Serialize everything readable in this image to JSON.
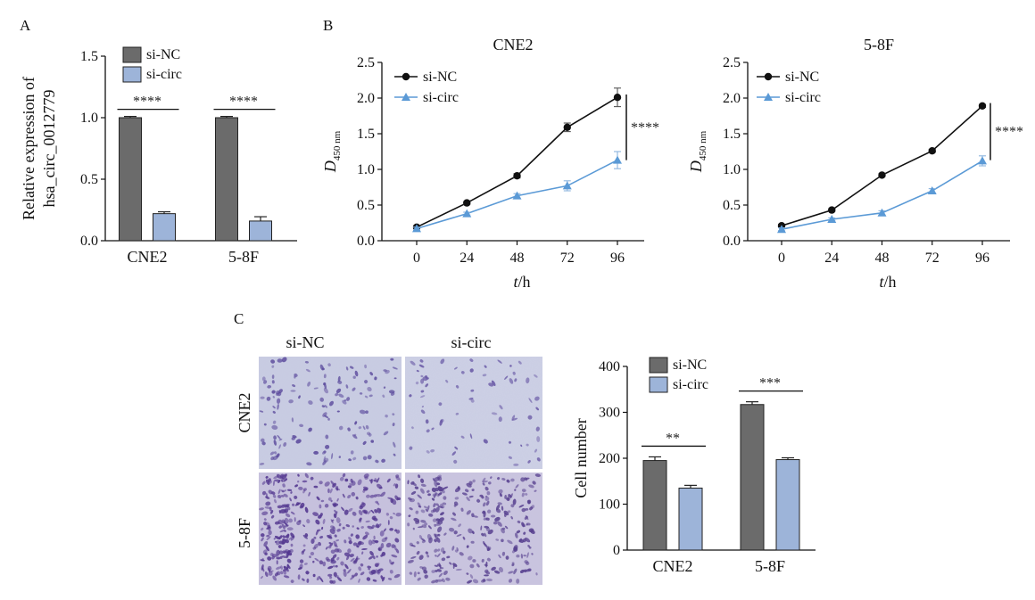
{
  "panel_labels": {
    "a": "A",
    "b": "B",
    "c": "C"
  },
  "colors": {
    "si_nc": "#6b6b6b",
    "si_circ": "#9db4d9",
    "line_nc": "#111111",
    "line_circ": "#5b9ad6"
  },
  "chart_data": [
    {
      "id": "A",
      "type": "bar",
      "categories": [
        "CNE2",
        "5-8F"
      ],
      "ylabel_line1": "Relative expression of",
      "ylabel_line2": "hsa_circ_0012779",
      "ylim": [
        0,
        1.5
      ],
      "yticks": [
        "0.0",
        "0.5",
        "1.0",
        "1.5"
      ],
      "legend": [
        "si-NC",
        "si-circ"
      ],
      "series": [
        {
          "name": "si-NC",
          "values": [
            1.0,
            1.0
          ],
          "errors": [
            0.01,
            0.01
          ]
        },
        {
          "name": "si-circ",
          "values": [
            0.22,
            0.16
          ],
          "errors": [
            0.015,
            0.035
          ]
        }
      ],
      "significance": [
        "****",
        "****"
      ]
    },
    {
      "id": "B1",
      "type": "line",
      "title": "CNE2",
      "x": [
        0,
        24,
        48,
        72,
        96
      ],
      "xticks": [
        "0",
        "24",
        "48",
        "72",
        "96"
      ],
      "ylabel": "D",
      "ylabel_sub": "450 nm",
      "xlabel_var": "t",
      "xlabel_unit": "/h",
      "ylim": [
        0,
        2.5
      ],
      "yticks": [
        "0.0",
        "0.5",
        "1.0",
        "1.5",
        "2.0",
        "2.5"
      ],
      "legend": [
        "si-NC",
        "si-circ"
      ],
      "series": [
        {
          "name": "si-NC",
          "values": [
            0.19,
            0.53,
            0.91,
            1.59,
            2.01
          ],
          "errors": [
            0.02,
            0.02,
            0.03,
            0.06,
            0.13
          ]
        },
        {
          "name": "si-circ",
          "values": [
            0.17,
            0.38,
            0.63,
            0.77,
            1.13
          ],
          "errors": [
            0.02,
            0.02,
            0.03,
            0.07,
            0.12
          ]
        }
      ],
      "significance": "****"
    },
    {
      "id": "B2",
      "type": "line",
      "title": "5-8F",
      "x": [
        0,
        24,
        48,
        72,
        96
      ],
      "xticks": [
        "0",
        "24",
        "48",
        "72",
        "96"
      ],
      "ylabel": "D",
      "ylabel_sub": "450 nm",
      "xlabel_var": "t",
      "xlabel_unit": "/h",
      "ylim": [
        0,
        2.5
      ],
      "yticks": [
        "0.0",
        "0.5",
        "1.0",
        "1.5",
        "2.0",
        "2.5"
      ],
      "legend": [
        "si-NC",
        "si-circ"
      ],
      "series": [
        {
          "name": "si-NC",
          "values": [
            0.21,
            0.43,
            0.92,
            1.26,
            1.89
          ],
          "errors": [
            0.02,
            0.02,
            0.02,
            0.02,
            0.02
          ]
        },
        {
          "name": "si-circ",
          "values": [
            0.16,
            0.3,
            0.39,
            0.7,
            1.12
          ],
          "errors": [
            0.02,
            0.02,
            0.03,
            0.03,
            0.07
          ]
        }
      ],
      "significance": "****"
    },
    {
      "id": "C",
      "type": "bar",
      "categories": [
        "CNE2",
        "5-8F"
      ],
      "ylabel": "Cell number",
      "ylim": [
        0,
        400
      ],
      "yticks": [
        "0",
        "100",
        "200",
        "300",
        "400"
      ],
      "legend": [
        "si-NC",
        "si-circ"
      ],
      "series": [
        {
          "name": "si-NC",
          "values": [
            195,
            317
          ],
          "errors": [
            8,
            6
          ]
        },
        {
          "name": "si-circ",
          "values": [
            135,
            197
          ],
          "errors": [
            6,
            4
          ]
        }
      ],
      "significance": [
        "**",
        "***"
      ]
    }
  ],
  "micrographs": {
    "col_headers": [
      "si-NC",
      "si-circ"
    ],
    "row_labels": [
      "CNE2",
      "5-8F"
    ]
  }
}
